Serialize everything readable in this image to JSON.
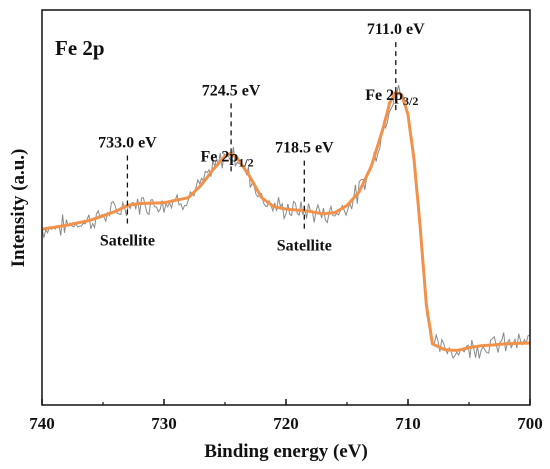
{
  "chart_data": {
    "type": "line",
    "title": "Fe 2p",
    "xlabel": "Binding energy (eV)",
    "ylabel": "Intensity (a.u.)",
    "xlim": [
      740,
      700
    ],
    "x_reversed": true,
    "x_ticks": [
      740,
      730,
      720,
      710,
      700
    ],
    "x_tick_labels": [
      "740",
      "730",
      "720",
      "710",
      "700"
    ],
    "ylim": [
      0,
      1.0
    ],
    "y_ticks_shown": false,
    "grid": false,
    "colors": {
      "fit": "#f2914a",
      "raw": "#8a8a8a",
      "axis": "#111111"
    },
    "series": [
      {
        "kind": "fit",
        "x": [
          740,
          738,
          736,
          734,
          733,
          732,
          730,
          728,
          727,
          726,
          725,
          724.5,
          724,
          723,
          722,
          721,
          720,
          719,
          718.5,
          718,
          717,
          716,
          715,
          714,
          713,
          712,
          711.5,
          711,
          710.5,
          710,
          709.5,
          709,
          708.5,
          708,
          707,
          706,
          705,
          704,
          703,
          702,
          701,
          700
        ],
        "y": [
          0.445,
          0.455,
          0.468,
          0.49,
          0.505,
          0.51,
          0.512,
          0.525,
          0.555,
          0.595,
          0.63,
          0.637,
          0.625,
          0.58,
          0.525,
          0.502,
          0.496,
          0.493,
          0.492,
          0.49,
          0.484,
          0.487,
          0.505,
          0.54,
          0.605,
          0.705,
          0.765,
          0.792,
          0.785,
          0.735,
          0.62,
          0.45,
          0.255,
          0.155,
          0.14,
          0.138,
          0.145,
          0.15,
          0.152,
          0.155,
          0.156,
          0.157
        ]
      }
    ],
    "annotations": [
      {
        "x": 733.0,
        "label": "733.0 eV",
        "sublabel": "Satellite"
      },
      {
        "x": 724.5,
        "label": "724.5 eV",
        "sublabel_main": "Fe 2p",
        "sublabel_sub": "1/2"
      },
      {
        "x": 718.5,
        "label": "718.5 eV",
        "sublabel": "Satellite"
      },
      {
        "x": 711.0,
        "label": "711.0 eV",
        "sublabel_main": "Fe 2p",
        "sublabel_sub": "3/2"
      }
    ]
  }
}
